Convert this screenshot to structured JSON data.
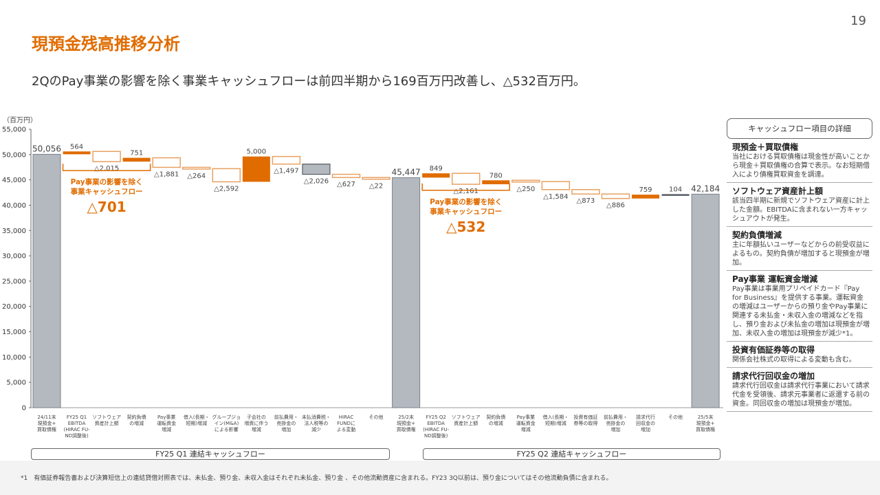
{
  "page_number": "19",
  "title": "現預金残高推移分析",
  "subtitle": "2QのPay事業の影響を除く事業キャッシュフローは前四半期から169百万円改善し、△532百万円。",
  "colors": {
    "accent": "#e06c00",
    "total": "#b4b8bf",
    "outline": "#e8a060",
    "other": "#555b66"
  },
  "chart_data": {
    "type": "waterfall",
    "unit_label": "（百万円）",
    "ylim": [
      0,
      55000
    ],
    "yticks": [
      "0",
      "5,000",
      "10,000",
      "15,000",
      "20,000",
      "25,000",
      "30,000",
      "35,000",
      "40,000",
      "45,000",
      "50,000",
      "55,000"
    ],
    "items": [
      {
        "label": "24/11末\n現預金+\n買取債権",
        "value": 50056,
        "kind": "total",
        "text": "50,056"
      },
      {
        "label": "FY25 Q1\nEBITDA\n(HIRAC FU-\nND調整後)",
        "value": 564,
        "kind": "pos",
        "text": "564"
      },
      {
        "label": "ソフトウェア\n資産計上額",
        "value": -2015,
        "kind": "neg",
        "text": "△2,015"
      },
      {
        "label": "契約負債\nの増減",
        "value": 751,
        "kind": "pos",
        "text": "751"
      },
      {
        "label": "Pay事業\n運転資金\n増減",
        "value": -1881,
        "kind": "neg",
        "text": "△1,881"
      },
      {
        "label": "借入(長期・\n短期)増減",
        "value": -264,
        "kind": "neg",
        "text": "△264"
      },
      {
        "label": "グループジョ\nイン(M&A)\nによる影響",
        "value": -2592,
        "kind": "neg",
        "text": "△2,592"
      },
      {
        "label": "子会社の\n増資に伴う\n増減",
        "value": 5000,
        "kind": "pos",
        "text": "5,000"
      },
      {
        "label": "前払費用・\n売掛金の\n増加",
        "value": -1497,
        "kind": "neg",
        "text": "△1,497"
      },
      {
        "label": "未払消費税・\n法人税等の\n減少",
        "value": -2026,
        "kind": "negdark",
        "text": "△2,026"
      },
      {
        "label": "HIRAC\nFUNDに\nよる変動",
        "value": -627,
        "kind": "neg",
        "text": "△627"
      },
      {
        "label": "その他",
        "value": -22,
        "kind": "neg",
        "text": "△22"
      },
      {
        "label": "25/2末\n現預金+\n買取債権",
        "value": 45447,
        "kind": "total",
        "text": "45,447"
      },
      {
        "label": "FY25 Q2\nEBITDA\n(HIRAC FU-\nND調整後)",
        "value": 849,
        "kind": "pos",
        "text": "849"
      },
      {
        "label": "ソフトウェア\n資産計上額",
        "value": -2161,
        "kind": "neg",
        "text": "△2,161"
      },
      {
        "label": "契約負債\nの増減",
        "value": 780,
        "kind": "pos",
        "text": "780"
      },
      {
        "label": "Pay事業\n運転資金\n増減",
        "value": -250,
        "kind": "neg",
        "text": "△250"
      },
      {
        "label": "借入(長期・\n短期)増減",
        "value": -1584,
        "kind": "neg",
        "text": "△1,584"
      },
      {
        "label": "投資有価証\n券等の取得",
        "value": -873,
        "kind": "neg",
        "text": "△873"
      },
      {
        "label": "前払費用・\n売掛金の\n増加",
        "value": -886,
        "kind": "neg",
        "text": "△886"
      },
      {
        "label": "請求代行\n回収金の\n増加",
        "value": 759,
        "kind": "pos",
        "text": "759"
      },
      {
        "label": "その他",
        "value": 104,
        "kind": "posdark",
        "text": "104"
      },
      {
        "label": "25/5末\n現預金+\n買取債権",
        "value": 42184,
        "kind": "total",
        "text": "42,184"
      }
    ],
    "annotations": [
      {
        "line1": "Pay事業の影響を除く",
        "line2": "事業キャッシュフロー",
        "value": "△701",
        "from": 1,
        "to": 3
      },
      {
        "line1": "Pay事業の影響を除く",
        "line2": "事業キャッシュフロー",
        "value": "△532",
        "from": 13,
        "to": 15
      }
    ],
    "groups": [
      {
        "label": "FY25 Q1 連結キャッシュフロー",
        "from": 0,
        "to": 12
      },
      {
        "label": "FY25 Q2 連結キャッシュフロー",
        "from": 13,
        "to": 22
      }
    ]
  },
  "panel": {
    "header": "キャッシュフロー項目の詳細",
    "items": [
      {
        "title": "現預金＋買取債権",
        "body": "当社における買取債権は現金性が高いことから現金＋買取債権の合算で表示。なお短期借入により債権買取資金を調達。"
      },
      {
        "title": "ソフトウェア資産計上額",
        "body": "該当四半期に新規でソフトウェア資産に計上した金額。EBITDAに含まれない一方キャッシュアウトが発生。"
      },
      {
        "title": "契約負債増減",
        "body": "主に年額払いユーザーなどからの前受収益によるもの。契約負債が増加すると現預金が増加。"
      },
      {
        "title": "Pay事業 運転資金増減",
        "body": "Pay事業は事業用プリペイドカード『Pay for Business』を提供する事業。運転資金の増減はユーザーからの預り金やPay事業に関連する未払金・未収入金の増減などを指し、預り金および未払金の増加は現預金が増加、未収入金の増加は現預金が減少*1。"
      },
      {
        "title": "投資有価証券等の取得",
        "body": "関係会社株式の取得による変動も含む。"
      },
      {
        "title": "請求代行回収金の増加",
        "body": "請求代行回収金は請求代行事業において請求代金を受領後、請求元事業者に返還する前の資金。同回収金の増加は現預金が増加。"
      }
    ]
  },
  "footnote": "*1　有価証券報告書および決算短信上の連結貸借対照表では、未払金、預り金、未収入金はそれぞれ未払金、預り金 、その他流動資産に含まれる。FY23 3Q以前は、預り金についてはその他流動負債に含まれる。"
}
